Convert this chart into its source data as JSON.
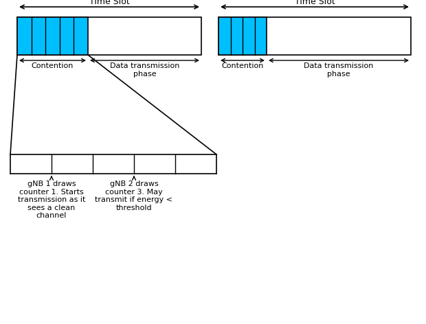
{
  "fig_width": 6.2,
  "fig_height": 4.72,
  "dpi": 100,
  "bg_color": "#ffffff",
  "cyan_color": "#00BFFF",
  "black_color": "#000000",
  "time_slot1_label": "Time Slot",
  "time_slot2_label": "Time Slot",
  "contention1_label": "Contention",
  "contention2_label": "Contention",
  "data_trans1_label": "Data transmission\nphase",
  "data_trans2_label": "Data transmission\nphase",
  "gnb1_label": "gNB 1 draws\ncounter 1. Starts\ntransmission as it\nsees a clean\nchannel",
  "gnb2_label": "gNB 2 draws\ncounter 3. May\ntransmit if energy <\nthreshold",
  "label_font_size": 8.0,
  "timeslot_font_size": 9.0
}
